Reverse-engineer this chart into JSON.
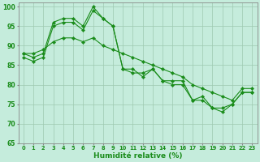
{
  "xlabel": "Humidité relative (%)",
  "xlim": [
    -0.5,
    23.5
  ],
  "ylim": [
    65,
    101
  ],
  "yticks": [
    65,
    70,
    75,
    80,
    85,
    90,
    95,
    100
  ],
  "xticks": [
    0,
    1,
    2,
    3,
    4,
    5,
    6,
    7,
    8,
    9,
    10,
    11,
    12,
    13,
    14,
    15,
    16,
    17,
    18,
    19,
    20,
    21,
    22,
    23
  ],
  "bg_color": "#c5ecdc",
  "line_color": "#1a8c1a",
  "grid_color": "#9ec9b0",
  "line1": [
    87,
    86,
    87,
    95,
    96,
    96,
    94,
    99,
    97,
    95,
    84,
    84,
    82,
    84,
    81,
    81,
    81,
    76,
    77,
    74,
    74,
    75,
    78,
    78
  ],
  "line2": [
    88,
    87,
    88,
    96,
    97,
    97,
    95,
    100,
    97,
    95,
    84,
    83,
    83,
    84,
    81,
    80,
    80,
    76,
    76,
    74,
    73,
    75,
    78,
    78
  ],
  "line3": [
    88,
    88,
    89,
    91,
    92,
    92,
    91,
    92,
    90,
    89,
    88,
    87,
    86,
    85,
    84,
    83,
    82,
    80,
    79,
    78,
    77,
    76,
    79,
    79
  ]
}
